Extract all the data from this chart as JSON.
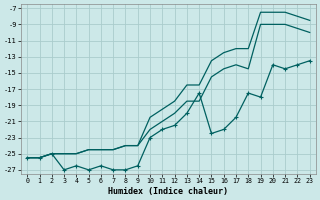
{
  "xlabel": "Humidex (Indice chaleur)",
  "bg_color": "#cce8e8",
  "grid_color": "#aacccc",
  "line_color": "#006060",
  "xlim": [
    -0.5,
    23.5
  ],
  "ylim": [
    -27.5,
    -6.5
  ],
  "yticks": [
    -7,
    -9,
    -11,
    -13,
    -15,
    -17,
    -19,
    -21,
    -23,
    -25,
    -27
  ],
  "xticks": [
    0,
    1,
    2,
    3,
    4,
    5,
    6,
    7,
    8,
    9,
    10,
    11,
    12,
    13,
    14,
    15,
    16,
    17,
    18,
    19,
    20,
    21,
    22,
    23
  ],
  "line1_x": [
    0,
    1,
    2,
    3,
    4,
    5,
    6,
    7,
    8,
    9,
    10,
    11,
    12,
    13,
    14,
    15,
    16,
    17,
    18,
    19,
    20,
    21,
    22,
    23
  ],
  "line1_y": [
    -25.5,
    -25.5,
    -25.0,
    -25.0,
    -25.0,
    -24.5,
    -24.5,
    -24.5,
    -24.0,
    -24.0,
    -20.5,
    -19.5,
    -18.5,
    -16.5,
    -16.5,
    -13.5,
    -12.5,
    -12.0,
    -12.0,
    -7.5,
    -7.5,
    -7.5,
    -8.0,
    -8.5
  ],
  "line2_x": [
    0,
    1,
    2,
    3,
    4,
    5,
    6,
    7,
    8,
    9,
    10,
    11,
    12,
    13,
    14,
    15,
    16,
    17,
    18,
    19,
    20,
    21,
    22,
    23
  ],
  "line2_y": [
    -25.5,
    -25.5,
    -25.0,
    -25.0,
    -25.0,
    -24.5,
    -24.5,
    -24.5,
    -24.0,
    -24.0,
    -22.0,
    -21.0,
    -20.0,
    -18.5,
    -18.5,
    -15.5,
    -14.5,
    -14.0,
    -14.5,
    -9.0,
    -9.0,
    -9.0,
    -9.5,
    -10.0
  ],
  "line3_x": [
    0,
    1,
    2,
    3,
    4,
    5,
    6,
    7,
    8,
    9,
    10,
    11,
    12,
    13,
    14,
    15,
    16,
    17,
    18,
    19,
    20,
    21,
    22,
    23
  ],
  "line3_y": [
    -25.5,
    -25.5,
    -25.0,
    -27.0,
    -26.5,
    -27.0,
    -26.5,
    -27.0,
    -27.0,
    -26.5,
    -23.0,
    -22.0,
    -21.5,
    -20.0,
    -17.5,
    -22.5,
    -22.0,
    -20.5,
    -17.5,
    -18.0,
    -14.0,
    -14.5,
    -14.0,
    -13.5
  ]
}
